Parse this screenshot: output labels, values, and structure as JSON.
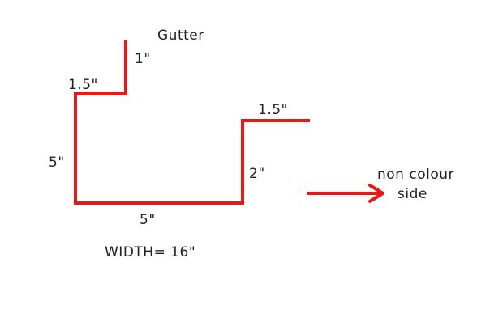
{
  "title": "Gutter",
  "colors": {
    "profile": "#e81818",
    "arrow": "#e81818",
    "text": "#222222",
    "background": "#ffffff"
  },
  "dimensions": {
    "top_lip": "1\"",
    "top_step": "1.5\"",
    "left_side": "5\"",
    "bottom": "5\"",
    "right_side": "2\"",
    "right_flange": "1.5\""
  },
  "width_note": "WIDTH= 16\"",
  "side_note": {
    "line1": "non colour",
    "line2": "side"
  },
  "arrow_icon": "right-arrow-icon"
}
